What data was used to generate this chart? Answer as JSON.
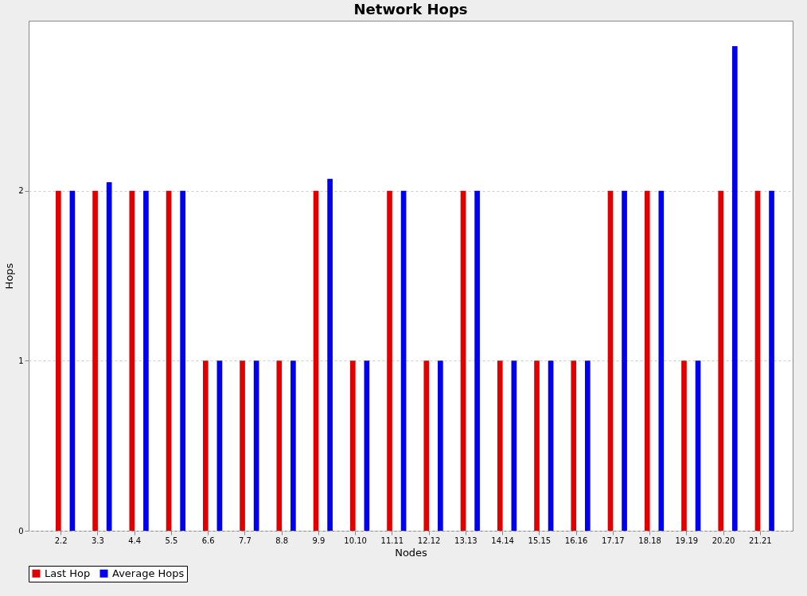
{
  "chart_data": {
    "type": "bar",
    "title": "Network Hops",
    "xlabel": "Nodes",
    "ylabel": "Hops",
    "categories": [
      "2.2",
      "3.3",
      "4.4",
      "5.5",
      "6.6",
      "7.7",
      "8.8",
      "9.9",
      "10.10",
      "11.11",
      "12.12",
      "13.13",
      "14.14",
      "15.15",
      "16.16",
      "17.17",
      "18.18",
      "19.19",
      "20.20",
      "21.21"
    ],
    "series": [
      {
        "name": "Last Hop",
        "color": "#e00000",
        "values": [
          2,
          2,
          2,
          2,
          1,
          1,
          1,
          2,
          1,
          2,
          1,
          2,
          1,
          1,
          1,
          2,
          2,
          1,
          2,
          2
        ]
      },
      {
        "name": "Average Hops",
        "color": "#0000ee",
        "values": [
          2,
          2.05,
          2,
          2,
          1,
          1,
          1,
          2.07,
          1,
          2,
          1,
          2,
          1,
          1,
          1,
          2,
          2,
          1,
          2.85,
          2
        ]
      }
    ],
    "ylim": [
      0,
      3
    ],
    "yticks": [
      0,
      1,
      2
    ],
    "grid": "y",
    "legend": "bottom"
  }
}
